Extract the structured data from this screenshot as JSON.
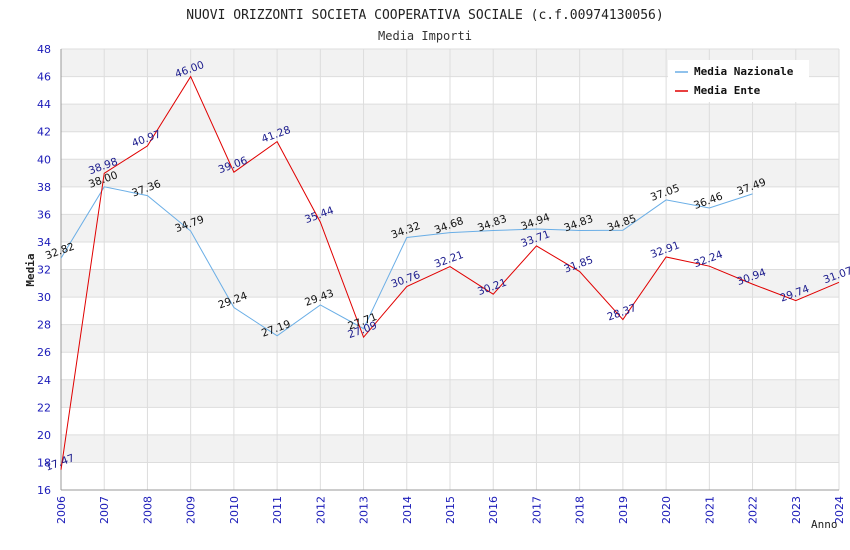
{
  "chart_data": {
    "type": "line",
    "title": "NUOVI ORIZZONTI SOCIETA COOPERATIVA SOCIALE (c.f.00974130056)",
    "subtitle": "Media Importi",
    "xlabel": "Anno",
    "ylabel": "Media",
    "ylim": [
      16,
      48
    ],
    "ytick_step": 2,
    "grid": true,
    "legend_position": "top-right",
    "categories": [
      "2006",
      "2007",
      "2008",
      "2009",
      "2010",
      "2011",
      "2012",
      "2013",
      "2014",
      "2015",
      "2016",
      "2017",
      "2018",
      "2019",
      "2020",
      "2021",
      "2022",
      "2023",
      "2024"
    ],
    "series": [
      {
        "name": "Media Nazionale",
        "color": "#6aaee6",
        "values": [
          32.82,
          38.0,
          37.36,
          34.79,
          29.24,
          27.19,
          29.43,
          27.71,
          34.32,
          34.68,
          34.83,
          34.94,
          34.83,
          34.85,
          37.05,
          36.46,
          37.49,
          null,
          null
        ],
        "labels": [
          "32.82",
          "38.00",
          "37.36",
          "34.79",
          "29.24",
          "27.19",
          "29.43",
          "27.71",
          "34.32",
          "34.68",
          "34.83",
          "34.94",
          "34.83",
          "34.85",
          "37.05",
          "36.46",
          "37.49",
          "",
          ""
        ]
      },
      {
        "name": "Media Ente",
        "color": "#e00000",
        "values": [
          17.47,
          38.98,
          40.97,
          46.0,
          39.06,
          41.28,
          35.44,
          27.09,
          30.76,
          32.21,
          30.21,
          33.71,
          31.85,
          28.37,
          32.91,
          32.24,
          30.94,
          29.74,
          31.07
        ],
        "labels": [
          "17.47",
          "38.98",
          "40.97",
          "46.00",
          "39.06",
          "41.28",
          "35.44",
          "27.09",
          "30.76",
          "32.21",
          "30.21",
          "33.71",
          "31.85",
          "28.37",
          "32.91",
          "32.24",
          "30.94",
          "29.74",
          "31.07"
        ]
      }
    ]
  }
}
